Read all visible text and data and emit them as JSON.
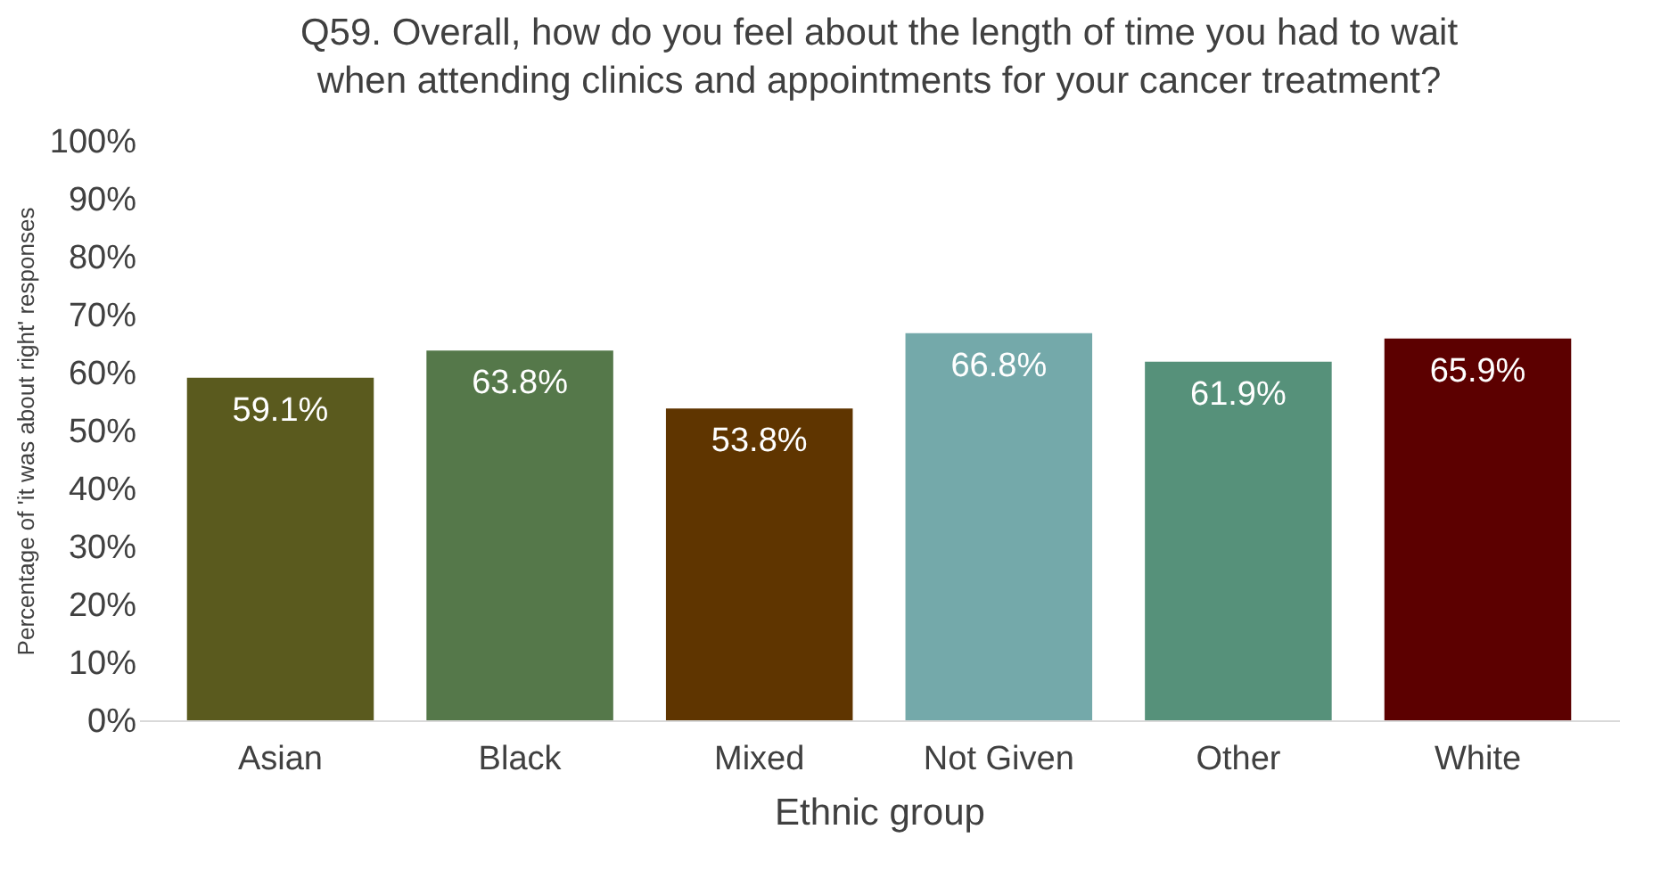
{
  "chart_data": {
    "type": "bar",
    "title": "Q59. Overall, how do you feel about the length of time you had to wait when attending clinics and appointments for your cancer treatment?",
    "xlabel": "Ethnic group",
    "ylabel": "Percentage of 'it was about right' responses",
    "categories": [
      "Asian",
      "Black",
      "Mixed",
      "Not Given",
      "Other",
      "White"
    ],
    "values": [
      59.1,
      63.8,
      53.8,
      66.8,
      61.9,
      65.9
    ],
    "colors": [
      "#5a5a1e",
      "#55784a",
      "#5f3500",
      "#74a9aa",
      "#56917a",
      "#5c0000"
    ],
    "value_labels": [
      "59.1%",
      "63.8%",
      "53.8%",
      "66.8%",
      "61.9%",
      "65.9%"
    ],
    "ylim": [
      0,
      100
    ],
    "yticks": [
      {
        "value": 0,
        "label": "0%"
      },
      {
        "value": 10,
        "label": "10%"
      },
      {
        "value": 20,
        "label": "20%"
      },
      {
        "value": 30,
        "label": "30%"
      },
      {
        "value": 40,
        "label": "40%"
      },
      {
        "value": 50,
        "label": "50%"
      },
      {
        "value": 60,
        "label": "60%"
      },
      {
        "value": 70,
        "label": "70%"
      },
      {
        "value": 80,
        "label": "80%"
      },
      {
        "value": 90,
        "label": "90%"
      },
      {
        "value": 100,
        "label": "100%"
      }
    ],
    "grid": false
  }
}
